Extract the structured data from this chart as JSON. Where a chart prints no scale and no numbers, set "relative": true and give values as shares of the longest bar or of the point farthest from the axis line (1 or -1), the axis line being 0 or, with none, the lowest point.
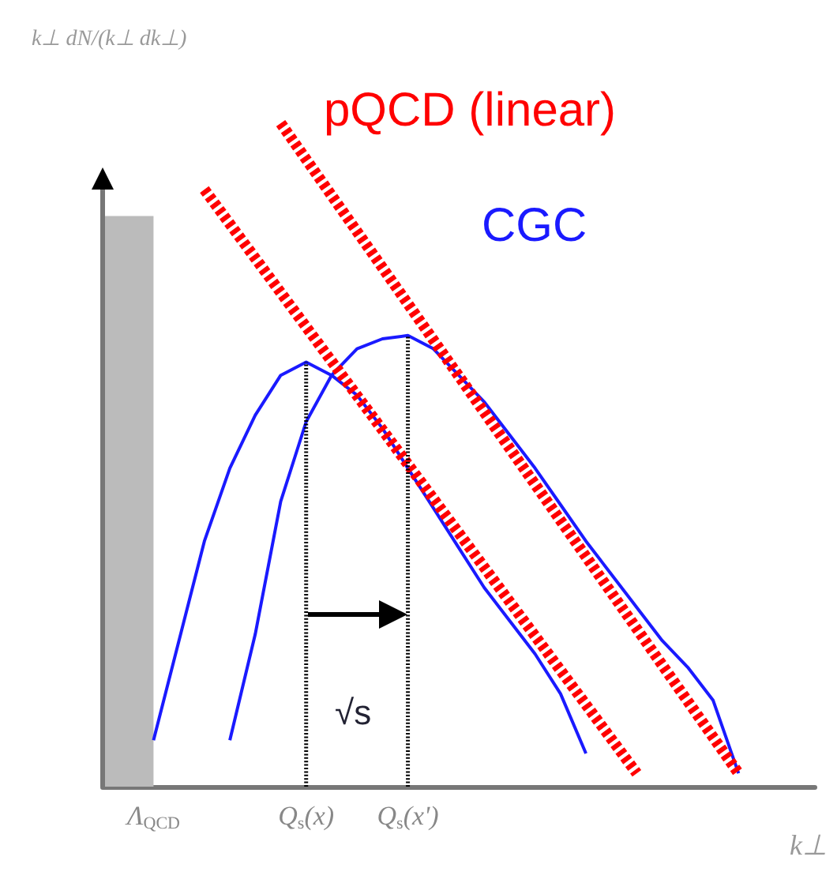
{
  "chart_data": {
    "type": "line",
    "relative": true,
    "ylabel": "k⊥ dN/(k⊥ dk⊥)",
    "xlabel": "k⊥",
    "categories": [
      null,
      null,
      "Λ$_{QCD}$",
      null,
      null,
      null,
      null,
      null,
      "Q$_{s}$(x)",
      null,
      null,
      null,
      "Q$_{s}$(x')",
      null,
      null,
      null,
      null,
      null,
      null,
      null,
      null,
      null,
      null,
      null,
      null,
      null,
      null,
      null,
      null
    ],
    "series": [
      {
        "type": "area",
        "color": "#bbbbbb",
        "values": [
          0.86,
          0.86,
          0.86,
          null,
          null,
          null,
          null,
          null,
          null,
          null,
          null,
          null,
          null,
          null,
          null,
          null,
          null,
          null,
          null,
          null,
          null,
          null,
          null,
          null,
          null,
          null,
          null,
          null,
          null
        ]
      },
      {
        "name": "CGC",
        "color": "#1a1aff",
        "values": [
          null,
          null,
          0.07,
          0.22,
          0.37,
          0.48,
          0.56,
          0.62,
          0.64,
          0.62,
          0.59,
          0.54,
          0.48,
          0.42,
          0.36,
          0.3,
          0.25,
          0.2,
          0.14,
          0.05,
          null,
          null,
          null,
          null,
          null,
          null,
          null,
          null,
          null
        ]
      },
      {
        "color": "#1a1aff",
        "values": [
          null,
          null,
          null,
          null,
          null,
          0.07,
          0.23,
          0.43,
          0.55,
          0.62,
          0.66,
          0.675,
          0.68,
          0.66,
          0.62,
          0.58,
          0.53,
          0.48,
          0.425,
          0.37,
          0.32,
          0.27,
          0.22,
          0.18,
          0.13,
          0.02,
          null,
          null,
          null
        ]
      },
      {
        "name": "pQCD (linear)",
        "color": "#ff0000",
        "line_style": "dashed",
        "values": [
          null,
          null,
          null,
          null,
          null,
          null,
          null,
          1,
          null,
          null,
          null,
          null,
          null,
          null,
          null,
          null,
          null,
          null,
          null,
          null,
          null,
          null,
          null,
          null,
          null,
          0.02,
          null,
          null,
          null
        ]
      },
      {
        "color": "#ff0000",
        "line_style": "dashed",
        "values": [
          null,
          null,
          null,
          null,
          0.9,
          null,
          null,
          null,
          null,
          null,
          null,
          null,
          null,
          null,
          null,
          null,
          null,
          null,
          null,
          null,
          null,
          0.02,
          null,
          null,
          null,
          null,
          null,
          null,
          null
        ]
      },
      {
        "color": "#000000",
        "line_style": "dotted",
        "x": [
          "Q$_{s}$(x)",
          "Q$_{s}$(x)"
        ],
        "values": [
          0,
          0.64
        ]
      },
      {
        "color": "#000000",
        "line_style": "dotted",
        "x": [
          "Q$_{s}$(x')",
          "Q$_{s}$(x')"
        ],
        "values": [
          0,
          0.68
        ]
      }
    ],
    "annotations": [
      "√s"
    ],
    "legend": false,
    "grid": false,
    "marker": "none"
  }
}
